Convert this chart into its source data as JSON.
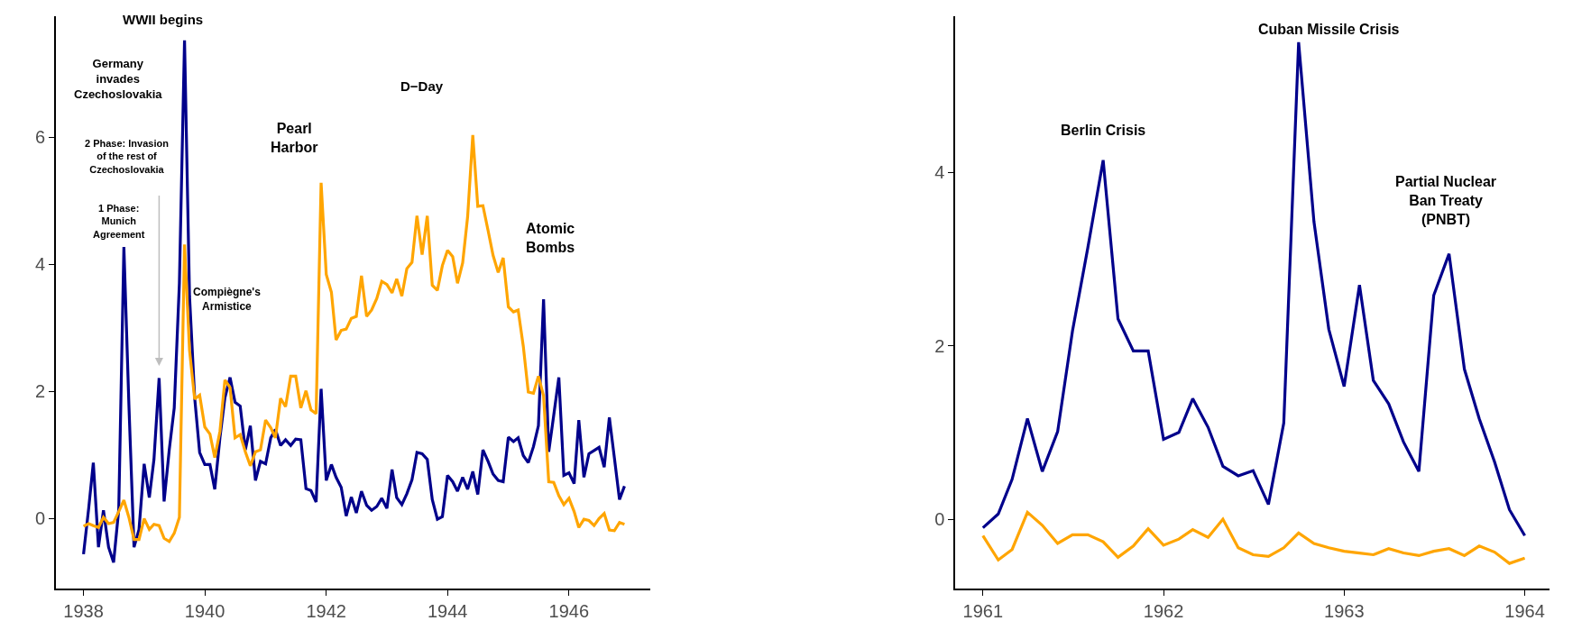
{
  "chart_data": [
    {
      "type": "line",
      "x": [
        "1938-01",
        "1938-02",
        "1938-03",
        "1938-04",
        "1938-05",
        "1938-06",
        "1938-07",
        "1938-08",
        "1938-09",
        "1938-10",
        "1938-11",
        "1938-12",
        "1939-01",
        "1939-02",
        "1939-03",
        "1939-04",
        "1939-05",
        "1939-06",
        "1939-07",
        "1939-08",
        "1939-09",
        "1939-10",
        "1939-11",
        "1939-12",
        "1940-01",
        "1940-02",
        "1940-03",
        "1940-04",
        "1940-05",
        "1940-06",
        "1940-07",
        "1940-08",
        "1940-09",
        "1940-10",
        "1940-11",
        "1940-12",
        "1941-01",
        "1941-02",
        "1941-03",
        "1941-04",
        "1941-05",
        "1941-06",
        "1941-07",
        "1941-08",
        "1941-09",
        "1941-10",
        "1941-11",
        "1941-12",
        "1942-01",
        "1942-02",
        "1942-03",
        "1942-04",
        "1942-05",
        "1942-06",
        "1942-07",
        "1942-08",
        "1942-09",
        "1942-10",
        "1942-11",
        "1942-12",
        "1943-01",
        "1943-02",
        "1943-03",
        "1943-04",
        "1943-05",
        "1943-06",
        "1943-07",
        "1943-08",
        "1943-09",
        "1943-10",
        "1943-11",
        "1943-12",
        "1944-01",
        "1944-02",
        "1944-03",
        "1944-04",
        "1944-05",
        "1944-06",
        "1944-07",
        "1944-08",
        "1944-09",
        "1944-10",
        "1944-11",
        "1944-12",
        "1945-01",
        "1945-02",
        "1945-03",
        "1945-04",
        "1945-05",
        "1945-06",
        "1945-07",
        "1945-08",
        "1945-09",
        "1945-10",
        "1945-11",
        "1945-12",
        "1946-01",
        "1946-02",
        "1946-03",
        "1946-04",
        "1946-05",
        "1946-06",
        "1946-07",
        "1946-08",
        "1946-09",
        "1946-10",
        "1946-11",
        "1946-12"
      ],
      "series": [
        {
          "color": "#00008b",
          "values": [
            -0.56,
            0.16,
            0.88,
            -0.45,
            0.13,
            -0.45,
            -0.69,
            0.14,
            4.27,
            1.8,
            -0.45,
            -0.17,
            0.86,
            0.33,
            0.93,
            2.21,
            0.27,
            1.08,
            1.74,
            3.7,
            7.52,
            3.5,
            1.9,
            1.04,
            0.85,
            0.85,
            0.46,
            1.27,
            1.9,
            2.22,
            1.83,
            1.77,
            1.08,
            1.46,
            0.6,
            0.9,
            0.86,
            1.27,
            1.4,
            1.15,
            1.24,
            1.15,
            1.25,
            1.24,
            0.47,
            0.44,
            0.26,
            2.04,
            0.6,
            0.85,
            0.65,
            0.49,
            0.04,
            0.34,
            0.09,
            0.43,
            0.21,
            0.13,
            0.19,
            0.32,
            0.16,
            0.77,
            0.33,
            0.22,
            0.39,
            0.61,
            1.04,
            1.02,
            0.93,
            0.3,
            -0.01,
            0.03,
            0.68,
            0.58,
            0.43,
            0.65,
            0.46,
            0.74,
            0.38,
            1.08,
            0.9,
            0.7,
            0.6,
            0.58,
            1.28,
            1.21,
            1.27,
            0.99,
            0.88,
            1.13,
            1.46,
            3.45,
            1.05,
            1.62,
            2.22,
            0.68,
            0.72,
            0.55,
            1.55,
            0.65,
            1.02,
            1.07,
            1.12,
            0.81,
            1.59,
            0.96,
            0.3,
            0.51
          ]
        },
        {
          "color": "#ffa500",
          "values": [
            -0.12,
            -0.08,
            -0.11,
            -0.14,
            0.02,
            -0.08,
            -0.06,
            0.11,
            0.29,
            0.02,
            -0.33,
            -0.33,
            0.0,
            -0.17,
            -0.09,
            -0.11,
            -0.31,
            -0.36,
            -0.23,
            0.02,
            4.31,
            2.65,
            1.88,
            1.94,
            1.44,
            1.33,
            0.96,
            1.37,
            2.18,
            2.06,
            1.27,
            1.32,
            1.05,
            0.83,
            1.05,
            1.08,
            1.55,
            1.43,
            1.27,
            1.89,
            1.76,
            2.24,
            2.24,
            1.74,
            2.01,
            1.71,
            1.65,
            5.28,
            3.84,
            3.56,
            2.81,
            2.96,
            2.98,
            3.15,
            3.18,
            3.82,
            3.18,
            3.28,
            3.46,
            3.73,
            3.68,
            3.55,
            3.77,
            3.5,
            3.93,
            4.03,
            4.76,
            4.15,
            4.76,
            3.67,
            3.59,
            3.98,
            4.22,
            4.12,
            3.7,
            4.02,
            4.75,
            6.03,
            4.91,
            4.92,
            4.53,
            4.14,
            3.87,
            4.1,
            3.33,
            3.25,
            3.28,
            2.71,
            1.99,
            1.97,
            2.24,
            1.93,
            0.58,
            0.57,
            0.36,
            0.22,
            0.32,
            0.11,
            -0.14,
            -0.01,
            -0.03,
            -0.11,
            0.0,
            0.08,
            -0.18,
            -0.19,
            -0.06,
            -0.09
          ]
        }
      ],
      "xlim": [
        "1937-07-19",
        "1947-05-05"
      ],
      "xticks": [
        {
          "value": "1938-01-01",
          "label": "1938"
        },
        {
          "value": "1940-01-01",
          "label": "1940"
        },
        {
          "value": "1942-01-01",
          "label": "1942"
        },
        {
          "value": "1944-01-01",
          "label": "1944"
        },
        {
          "value": "1946-01-01",
          "label": "1946"
        }
      ],
      "ylim": [
        -1.1,
        7.9
      ],
      "yticks": [
        0,
        2,
        4,
        6
      ],
      "annotations": [
        "WWII begins",
        "Germany\ninvades\nCzechoslovakia",
        "2 Phase: Invasion\nof the rest of\nCzechoslovakia",
        "1 Phase:\nMunich\nAgreement",
        "Pearl\nHarbor",
        "Compiègne's\nArmistice",
        "D−Day",
        "Atomic\nBombs"
      ]
    },
    {
      "type": "line",
      "x": [
        "1961-01",
        "1961-02",
        "1961-03",
        "1961-04",
        "1961-05",
        "1961-06",
        "1961-07",
        "1961-08",
        "1961-09",
        "1961-10",
        "1961-11",
        "1961-12",
        "1962-01",
        "1962-02",
        "1962-03",
        "1962-04",
        "1962-05",
        "1962-06",
        "1962-07",
        "1962-08",
        "1962-09",
        "1962-10",
        "1962-11",
        "1962-12",
        "1963-01",
        "1963-02",
        "1963-03",
        "1963-04",
        "1963-05",
        "1963-06",
        "1963-07",
        "1963-08",
        "1963-09",
        "1963-10",
        "1963-11",
        "1963-12",
        "1964-01"
      ],
      "series": [
        {
          "color": "#00008b",
          "values": [
            -0.1,
            0.06,
            0.46,
            1.16,
            0.55,
            1.01,
            2.17,
            3.13,
            4.14,
            2.31,
            1.94,
            1.94,
            0.92,
            1.0,
            1.39,
            1.06,
            0.61,
            0.5,
            0.56,
            0.17,
            1.11,
            5.5,
            3.43,
            2.19,
            1.53,
            2.7,
            1.6,
            1.33,
            0.89,
            0.55,
            2.58,
            3.06,
            1.73,
            1.16,
            0.66,
            0.11,
            -0.19
          ]
        },
        {
          "color": "#ffa500",
          "values": [
            -0.19,
            -0.47,
            -0.35,
            0.08,
            -0.07,
            -0.28,
            -0.18,
            -0.18,
            -0.26,
            -0.44,
            -0.31,
            -0.11,
            -0.3,
            -0.23,
            -0.12,
            -0.21,
            0.0,
            -0.33,
            -0.41,
            -0.43,
            -0.33,
            -0.16,
            -0.28,
            -0.33,
            -0.37,
            -0.39,
            -0.41,
            -0.34,
            -0.39,
            -0.42,
            -0.37,
            -0.34,
            -0.42,
            -0.31,
            -0.38,
            -0.51,
            -0.45
          ]
        }
      ],
      "xlim": [
        "1960-11-06",
        "1964-02-20"
      ],
      "xticks": [
        {
          "value": "1961-01-01",
          "label": "1961"
        },
        {
          "value": "1962-01-01",
          "label": "1962"
        },
        {
          "value": "1963-01-01",
          "label": "1963"
        },
        {
          "value": "1964-01-01",
          "label": "1964"
        }
      ],
      "ylim": [
        -0.8,
        5.8
      ],
      "yticks": [
        0,
        2,
        4
      ],
      "annotations": [
        "Berlin Crisis",
        "Cuban Missile Crisis",
        "Partial Nuclear\nBan Treaty\n(PNBT)"
      ]
    }
  ]
}
